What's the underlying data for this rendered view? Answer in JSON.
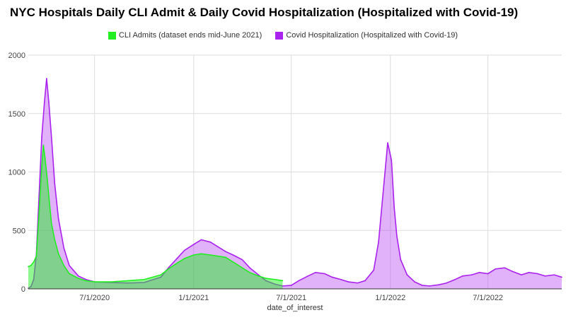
{
  "chart_data": {
    "type": "area",
    "title": "NYC Hospitals Daily CLI Admit & Daily Covid Hospitalization (Hospitalized with Covid-19)",
    "xlabel": "date_of_interest",
    "ylabel": "",
    "ylim": [
      0,
      2000
    ],
    "xlim": [
      "2020-02-29",
      "2022-11-15"
    ],
    "yticks": [
      "0",
      "500",
      "1000",
      "1500",
      "2000"
    ],
    "xticks": [
      {
        "date": "2020-07-01",
        "label": "7/1/2020"
      },
      {
        "date": "2021-01-01",
        "label": "1/1/2021"
      },
      {
        "date": "2021-07-01",
        "label": "7/1/2021"
      },
      {
        "date": "2022-01-01",
        "label": "1/1/2022"
      },
      {
        "date": "2022-07-01",
        "label": "7/1/2022"
      }
    ],
    "grid": true,
    "legend_position": "top",
    "series": [
      {
        "name": "CLI Admits (dataset ends mid-June 2021)",
        "color": "#22ee22",
        "x": [
          "2020-02-29",
          "2020-03-05",
          "2020-03-10",
          "2020-03-15",
          "2020-03-20",
          "2020-03-25",
          "2020-03-28",
          "2020-03-31",
          "2020-04-04",
          "2020-04-08",
          "2020-04-12",
          "2020-04-18",
          "2020-04-25",
          "2020-05-05",
          "2020-05-15",
          "2020-06-01",
          "2020-06-15",
          "2020-07-01",
          "2020-08-01",
          "2020-09-01",
          "2020-10-01",
          "2020-11-01",
          "2020-11-15",
          "2020-12-01",
          "2020-12-15",
          "2021-01-01",
          "2021-01-15",
          "2021-02-01",
          "2021-02-15",
          "2021-03-01",
          "2021-03-15",
          "2021-04-01",
          "2021-04-15",
          "2021-05-01",
          "2021-05-15",
          "2021-06-01",
          "2021-06-15"
        ],
        "values": [
          190,
          200,
          230,
          280,
          650,
          1050,
          1230,
          1120,
          950,
          750,
          560,
          420,
          300,
          200,
          130,
          90,
          70,
          60,
          60,
          70,
          80,
          120,
          170,
          220,
          260,
          290,
          300,
          290,
          280,
          270,
          230,
          180,
          140,
          110,
          90,
          80,
          70
        ]
      },
      {
        "name": "Covid Hospitalization (Hospitalized with Covid-19)",
        "color": "#aa22ee",
        "x": [
          "2020-02-29",
          "2020-03-05",
          "2020-03-10",
          "2020-03-15",
          "2020-03-20",
          "2020-03-25",
          "2020-03-30",
          "2020-04-03",
          "2020-04-07",
          "2020-04-12",
          "2020-04-18",
          "2020-04-25",
          "2020-05-05",
          "2020-05-15",
          "2020-06-01",
          "2020-06-15",
          "2020-07-01",
          "2020-08-01",
          "2020-09-01",
          "2020-10-01",
          "2020-11-01",
          "2020-11-15",
          "2020-12-01",
          "2020-12-15",
          "2021-01-01",
          "2021-01-15",
          "2021-02-01",
          "2021-02-15",
          "2021-03-01",
          "2021-03-15",
          "2021-04-01",
          "2021-04-15",
          "2021-05-01",
          "2021-05-15",
          "2021-06-01",
          "2021-06-15",
          "2021-07-01",
          "2021-07-15",
          "2021-08-01",
          "2021-08-15",
          "2021-09-01",
          "2021-09-15",
          "2021-10-01",
          "2021-10-15",
          "2021-11-01",
          "2021-11-15",
          "2021-12-01",
          "2021-12-10",
          "2021-12-20",
          "2021-12-27",
          "2022-01-03",
          "2022-01-08",
          "2022-01-13",
          "2022-01-20",
          "2022-02-01",
          "2022-02-15",
          "2022-03-01",
          "2022-03-15",
          "2022-04-01",
          "2022-04-15",
          "2022-05-01",
          "2022-05-15",
          "2022-06-01",
          "2022-06-15",
          "2022-07-01",
          "2022-07-15",
          "2022-08-01",
          "2022-08-15",
          "2022-09-01",
          "2022-09-15",
          "2022-10-01",
          "2022-10-15",
          "2022-11-01",
          "2022-11-15"
        ],
        "values": [
          5,
          20,
          80,
          300,
          800,
          1300,
          1600,
          1800,
          1600,
          1300,
          900,
          600,
          350,
          200,
          110,
          80,
          60,
          55,
          50,
          55,
          100,
          180,
          260,
          330,
          380,
          420,
          400,
          360,
          320,
          290,
          250,
          180,
          120,
          70,
          40,
          25,
          30,
          70,
          110,
          140,
          130,
          100,
          80,
          60,
          50,
          70,
          160,
          400,
          900,
          1250,
          1100,
          700,
          450,
          250,
          120,
          60,
          30,
          25,
          35,
          50,
          80,
          110,
          120,
          140,
          130,
          170,
          180,
          150,
          120,
          140,
          130,
          110,
          120,
          100
        ]
      }
    ]
  }
}
